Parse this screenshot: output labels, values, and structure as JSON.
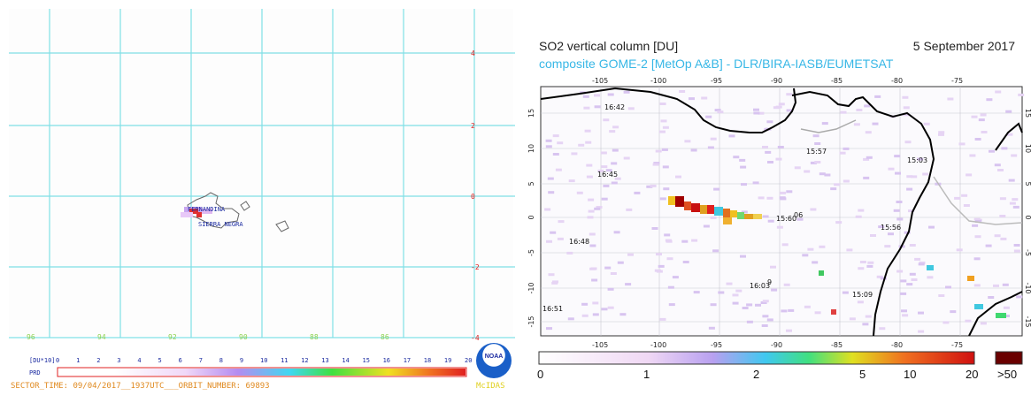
{
  "left_panel": {
    "lat_labels": [
      "4",
      "2",
      "0",
      "-2",
      "-4"
    ],
    "lon_labels": [
      "96",
      "94",
      "92",
      "90",
      "88",
      "86"
    ],
    "place_labels": [
      "FERNANDINA",
      "SIERRA NEGRA"
    ],
    "scale_label": "[DU*10]",
    "scale_ticks": [
      "0",
      "1",
      "2",
      "3",
      "4",
      "5",
      "6",
      "7",
      "8",
      "9",
      "10",
      "11",
      "12",
      "13",
      "14",
      "15",
      "16",
      "17",
      "18",
      "19",
      "20"
    ],
    "prd_label": "PRD",
    "sector_text": "SECTOR_TIME: 09/04/2017__1937UTC___ORBIT_NUMBER: 69893",
    "noaa_text": "NOAA",
    "mcidas_text": "McIDAS",
    "grid_color": "#7fe0e6",
    "lat_label_color": "#e02020",
    "lon_label_color": "#8fd14f"
  },
  "right_panel": {
    "title": "SO2 vertical column [DU]",
    "date": "5 September 2017",
    "subtitle": "composite GOME-2 [MetOp A&B] - DLR/BIRA-IASB/EUMETSAT",
    "lon_labels": [
      "-105",
      "-100",
      "-95",
      "-90",
      "-85",
      "-80",
      "-75"
    ],
    "lat_labels": [
      "15",
      "10",
      "5",
      "0",
      "-5",
      "-10",
      "-15"
    ],
    "time_labels": [
      "16:42",
      "15:57",
      "15:03",
      "16:45",
      "15:60",
      "06",
      "15:56",
      "16:48",
      "16:03",
      "9",
      "15:09",
      "16:51"
    ],
    "colorbar_labels": [
      "0",
      "1",
      "2",
      "5",
      "10",
      "20",
      ">50"
    ],
    "subtitle_color": "#37b7e6"
  }
}
